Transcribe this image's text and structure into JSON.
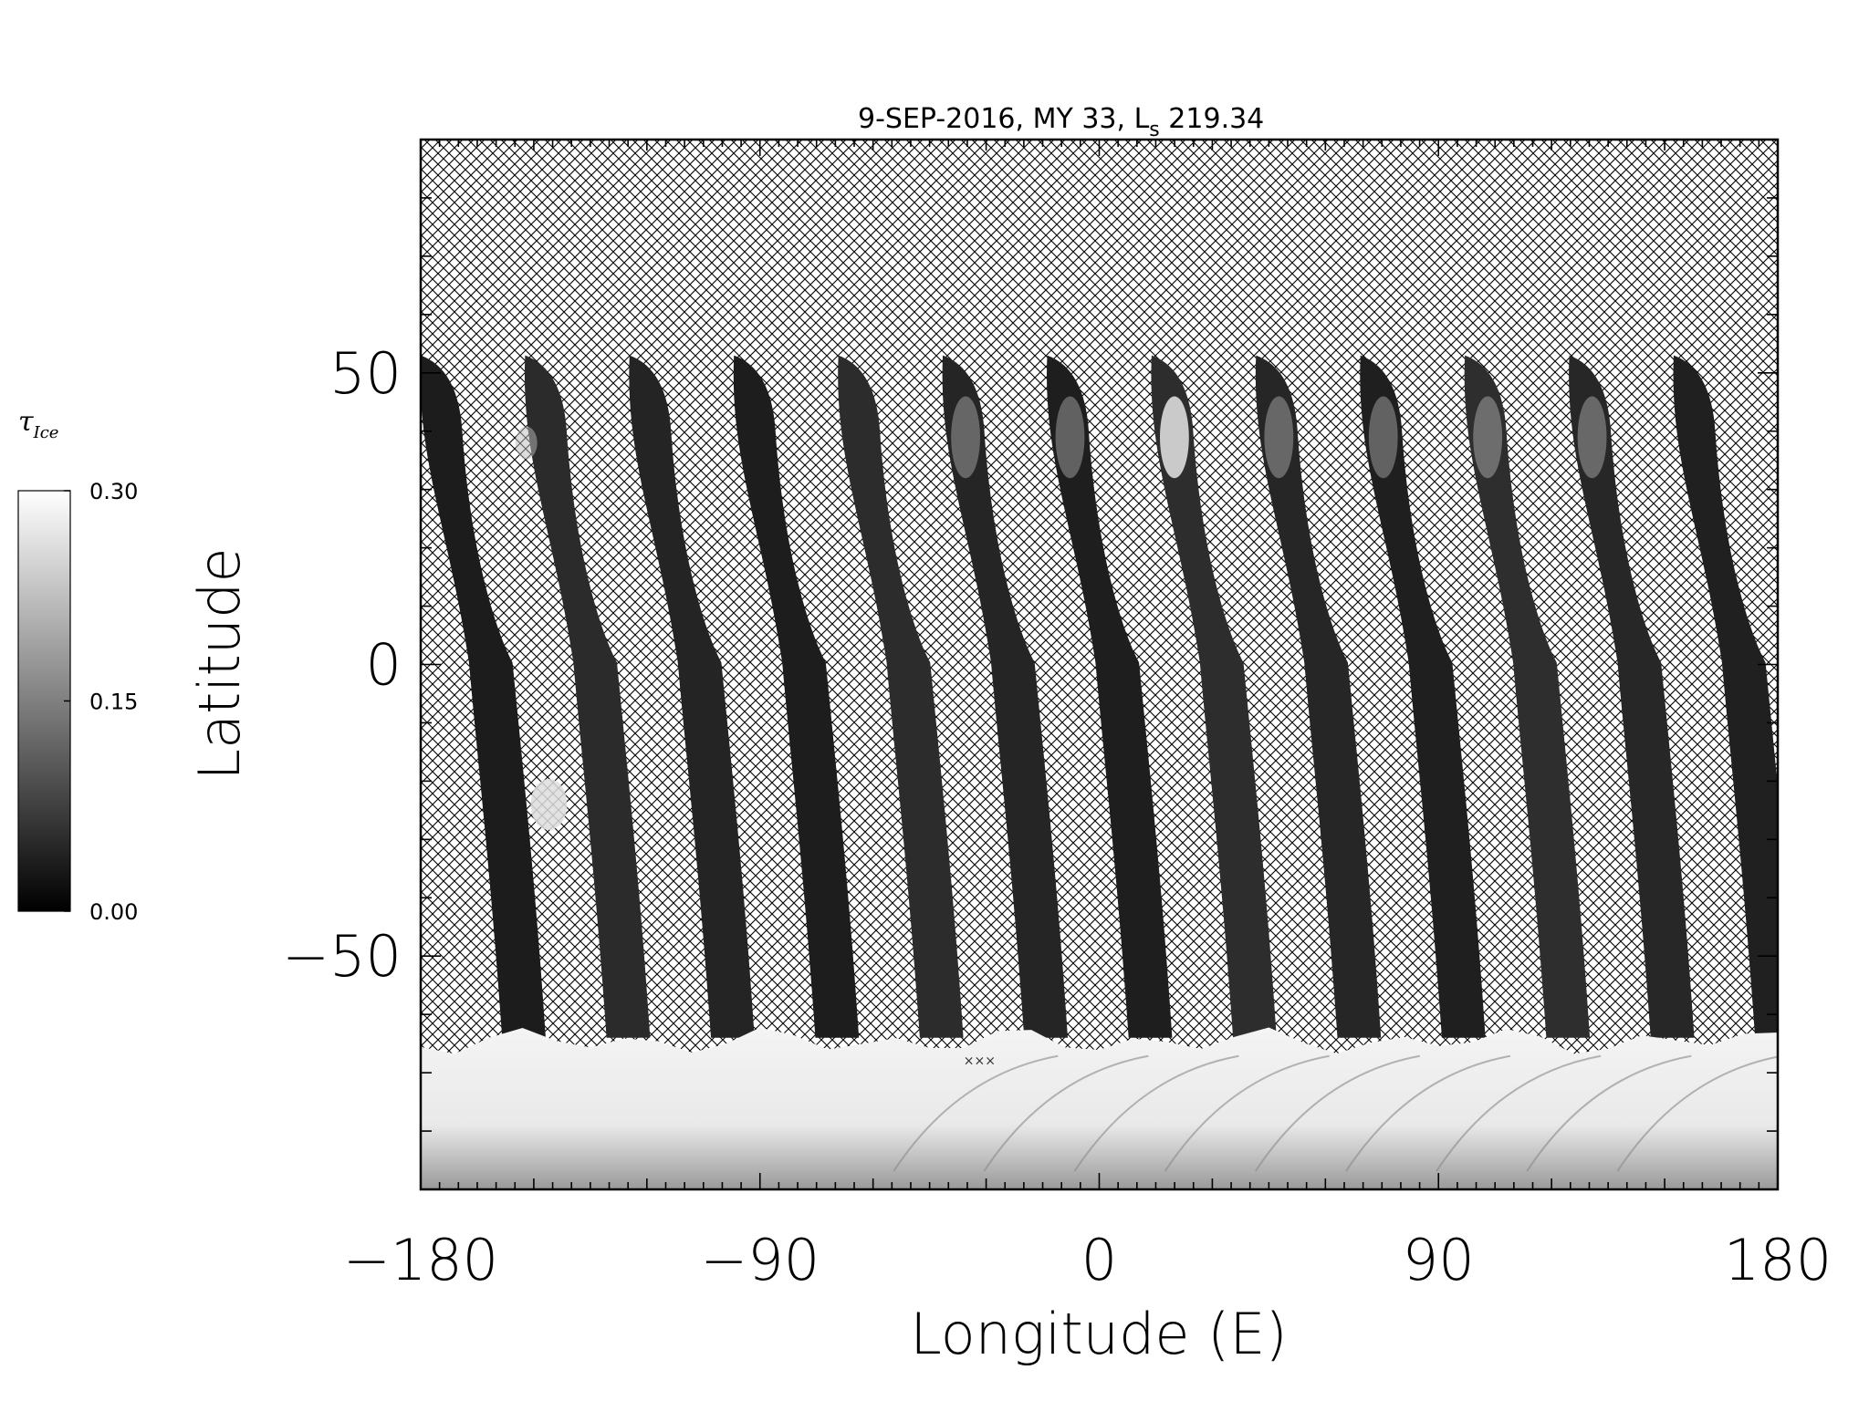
{
  "chart_data": {
    "type": "heatmap",
    "title": "9-SEP-2016, MY 33,  L",
    "title_sub": "s",
    "title_tail": " 219.34",
    "xlabel": "Longitude (E)",
    "ylabel": "Latitude",
    "xlim": [
      -180,
      180
    ],
    "ylim": [
      -90,
      90
    ],
    "xticks": [
      -180,
      -90,
      0,
      90,
      180
    ],
    "xtick_labels": [
      "−180",
      "−90",
      "0",
      "90",
      "180"
    ],
    "yticks": [
      50,
      0,
      -50
    ],
    "ytick_labels": [
      "50",
      "0",
      "−50"
    ],
    "colorbar": {
      "label": "τ",
      "label_sub": "Ice",
      "range": [
        0.0,
        0.3
      ],
      "ticks": [
        0.0,
        0.15,
        0.3
      ],
      "tick_labels": [
        "0.00",
        "0.15",
        "0.30"
      ],
      "colormap": "grayscale"
    },
    "swaths": {
      "count": 13,
      "first_top_lon": -180,
      "spacing_deg": 27.7,
      "north_edge_lat": 53,
      "south_edge_lat": -64
    },
    "south_polar_cap_lat": -64,
    "missing_data_pattern": "crosshatch",
    "marker_text": "×××",
    "colors": {
      "background": "#ffffff",
      "swath": "#1c1c1c",
      "cap": "#f2f2f2",
      "hatch": "#000000"
    }
  }
}
